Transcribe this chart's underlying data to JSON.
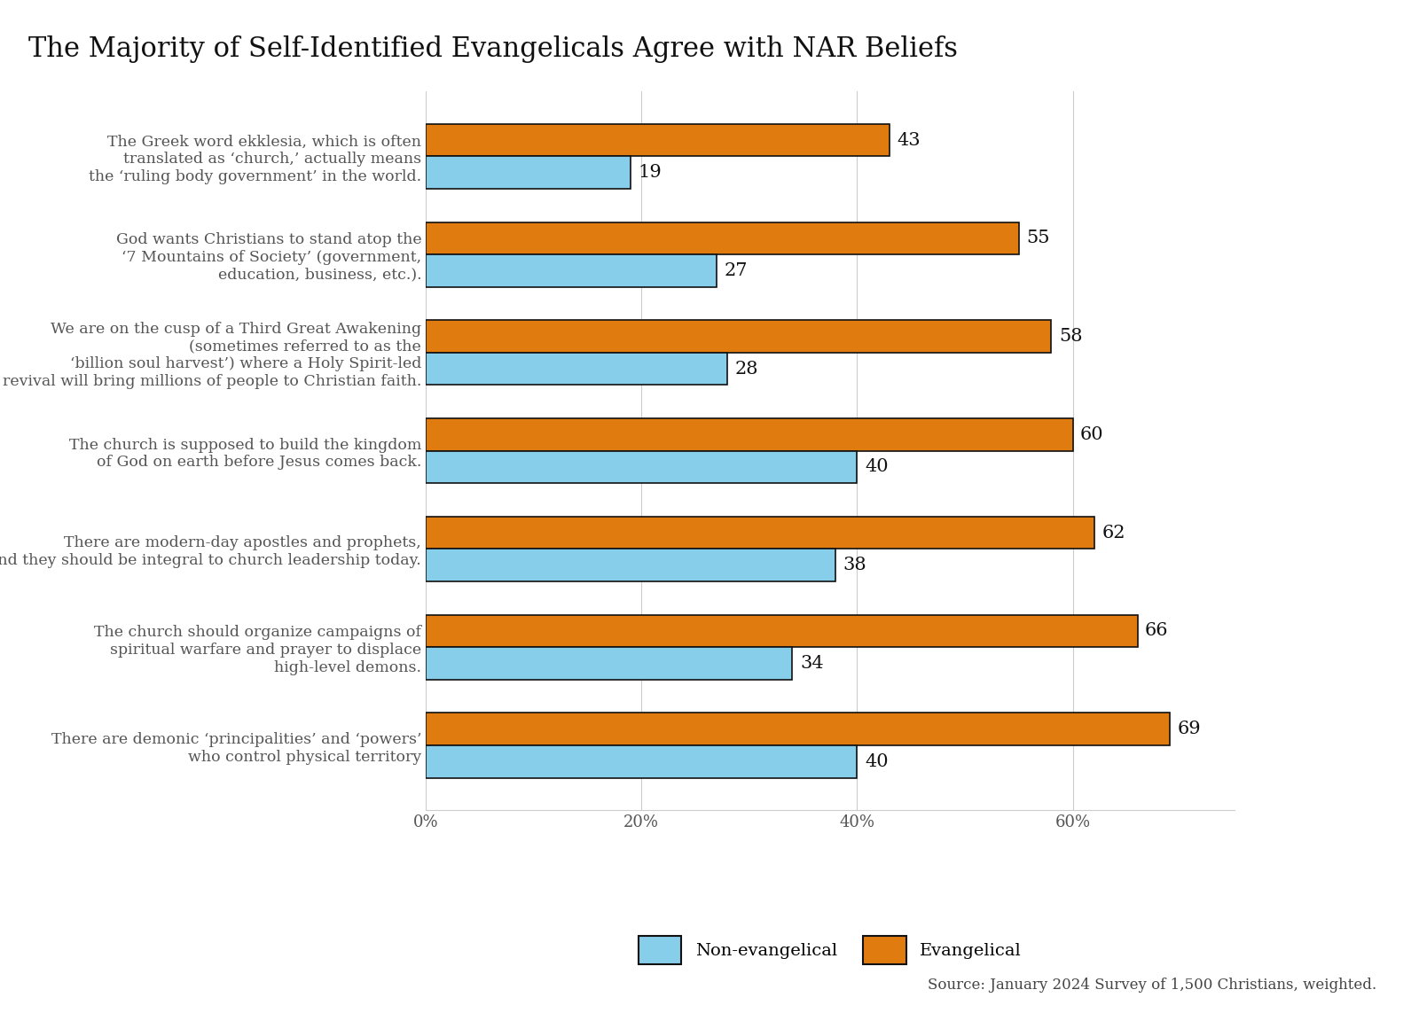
{
  "title": "The Majority of Self-Identified Evangelicals Agree with NAR Beliefs",
  "categories": [
    "The Greek word ekklesia, which is often\ntranslated as ‘church,’ actually means\nthe ‘ruling body government’ in the world.",
    "God wants Christians to stand atop the\n‘7 Mountains of Society’ (government,\neducation, business, etc.).",
    "We are on the cusp of a Third Great Awakening\n(sometimes referred to as the\n‘billion soul harvest’) where a Holy Spirit-led\nrevival will bring millions of people to Christian faith.",
    "The church is supposed to build the kingdom\nof God on earth before Jesus comes back.",
    "There are modern-day apostles and prophets,\nand they should be integral to church leadership today.",
    "The church should organize campaigns of\nspiritual warfare and prayer to displace\nhigh-level demons.",
    "There are demonic ‘principalities’ and ‘powers’\nwho control physical territory"
  ],
  "evangelical_values": [
    43,
    55,
    58,
    60,
    62,
    66,
    69
  ],
  "non_evangelical_values": [
    19,
    27,
    28,
    40,
    38,
    34,
    40
  ],
  "evangelical_color": "#E07B10",
  "non_evangelical_color": "#87CEEB",
  "bar_edge_color": "#111111",
  "title_fontsize": 22,
  "label_fontsize": 12.5,
  "tick_fontsize": 13,
  "value_fontsize": 15,
  "legend_fontsize": 14,
  "source_text": "Source: January 2024 Survey of 1,500 Christians, weighted.",
  "xlim": [
    0,
    75
  ],
  "xticks": [
    0,
    20,
    40,
    60
  ],
  "xtick_labels": [
    "0%",
    "20%",
    "40%",
    "60%"
  ],
  "background_color": "#ffffff",
  "grid_color": "#cccccc"
}
